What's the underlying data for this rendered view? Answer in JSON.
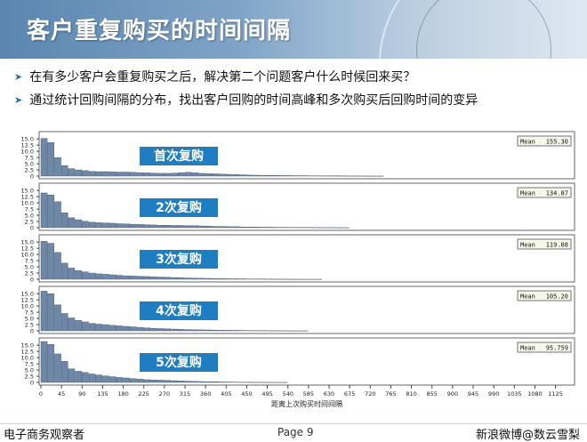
{
  "title": "客户重复购买的时间间隔",
  "bullets": [
    "在有多少客户会重复购买之后，解决第二个问题客户什么时候回来买？",
    "通过统计回购间隔的分布，找出客户回购的时间高峰和多次购买后回购时间的变异"
  ],
  "footer": {
    "left": "电子商务观察者",
    "page": "Page 9",
    "right": "新浪微博@数云雪梨"
  },
  "colors": {
    "bar": "#6f88a8",
    "label_box": "#1f7dc1",
    "mean_box": "#f4f7ea"
  },
  "chart_data": {
    "type": "bar",
    "xlabel": "距离上次购买时间间隔",
    "x_ticks": [
      0,
      45,
      90,
      135,
      180,
      225,
      270,
      315,
      360,
      405,
      450,
      495,
      540,
      585,
      630,
      675,
      720,
      765,
      810,
      855,
      900,
      945,
      990,
      1035,
      1080,
      1125
    ],
    "bin_width": 15,
    "y_ticks": [
      "0",
      "2.5",
      "5.0",
      "7.5",
      "10.0",
      "12.5",
      "15.0"
    ],
    "ylim": [
      0,
      16.5
    ],
    "panels": [
      {
        "label": "首次复购",
        "mean_label": "Mean",
        "mean_value": "155.30",
        "values": [
          15.2,
          13.5,
          7.5,
          4.2,
          3.0,
          2.5,
          2.2,
          1.9,
          1.8,
          1.8,
          1.7,
          1.6,
          1.6,
          1.5,
          1.4,
          1.3,
          1.2,
          1.1,
          1.1,
          1.2,
          1.4,
          1.5,
          1.3,
          1.1,
          1.0,
          0.9,
          0.8,
          0.7,
          0.6,
          0.5,
          0.4,
          0.35,
          0.3,
          0.3,
          0.25,
          0.2,
          0.2,
          0.15,
          0.15,
          0.12,
          0.1,
          0.1,
          0.08,
          0.08,
          0.06,
          0.05,
          0.05,
          0.04,
          0.04,
          0.03
        ]
      },
      {
        "label": "2次复购",
        "mean_label": "Mean",
        "mean_value": "134.87",
        "values": [
          14.0,
          13.2,
          10.5,
          6.0,
          4.0,
          3.2,
          2.6,
          2.2,
          2.0,
          1.9,
          1.8,
          1.6,
          1.5,
          1.4,
          1.3,
          1.2,
          1.1,
          1.0,
          1.0,
          0.9,
          0.9,
          0.8,
          0.8,
          0.7,
          0.6,
          0.5,
          0.5,
          0.4,
          0.4,
          0.3,
          0.3,
          0.25,
          0.2,
          0.2,
          0.15,
          0.15,
          0.12,
          0.1,
          0.1,
          0.08,
          0.06,
          0.05,
          0.05,
          0.04,
          0.03
        ]
      },
      {
        "label": "3次复购",
        "mean_label": "Mean",
        "mean_value": "119.08",
        "values": [
          15.3,
          14.5,
          10.8,
          6.5,
          4.5,
          3.5,
          3.0,
          2.5,
          2.2,
          2.0,
          1.8,
          1.6,
          1.4,
          1.3,
          1.2,
          1.1,
          1.0,
          0.9,
          0.8,
          0.7,
          0.6,
          0.5,
          0.45,
          0.4,
          0.35,
          0.3,
          0.25,
          0.2,
          0.2,
          0.15,
          0.12,
          0.1,
          0.08,
          0.06,
          0.05,
          0.04,
          0.03,
          0.03,
          0.02,
          0.02,
          0.02
        ]
      },
      {
        "label": "4次复购",
        "mean_label": "Mean",
        "mean_value": "105.20",
        "values": [
          16.0,
          15.0,
          10.5,
          7.0,
          5.2,
          4.2,
          3.6,
          3.0,
          2.7,
          2.5,
          2.2,
          2.0,
          1.8,
          1.6,
          1.4,
          1.2,
          1.0,
          0.9,
          0.8,
          0.7,
          0.6,
          0.5,
          0.45,
          0.4,
          0.35,
          0.3,
          0.25,
          0.2,
          0.2,
          0.15,
          0.12,
          0.1,
          0.08,
          0.06,
          0.05,
          0.04,
          0.03,
          0.02,
          0.02
        ]
      },
      {
        "label": "5次复购",
        "mean_label": "Mean",
        "mean_value": "95.759",
        "values": [
          16.5,
          15.3,
          11.5,
          8.5,
          5.5,
          4.5,
          4.0,
          3.4,
          3.0,
          2.6,
          2.3,
          2.0,
          1.8,
          1.5,
          1.3,
          1.1,
          1.0,
          0.9,
          0.8,
          0.7,
          0.6,
          0.5,
          0.4,
          0.35,
          0.3,
          0.25,
          0.2,
          0.15,
          0.12,
          0.1,
          0.08,
          0.06,
          0.05,
          0.04,
          0.03,
          0.02
        ]
      }
    ]
  }
}
